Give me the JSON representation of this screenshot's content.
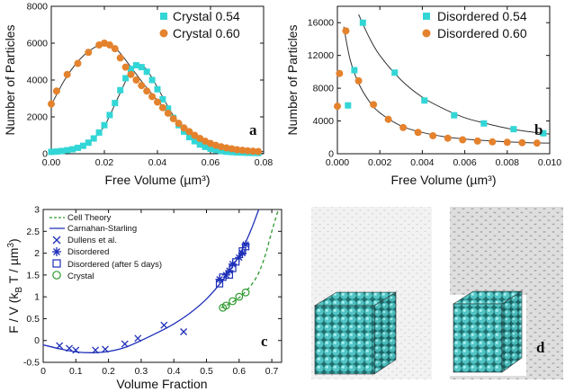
{
  "colors": {
    "cyan": "#33d6d6",
    "orange": "#e4822d",
    "blue": "#1e2fb8",
    "green": "#2e9a2e",
    "teal": "#3fb5b5"
  },
  "panels": {
    "a": "a",
    "b": "b",
    "c": "c",
    "d": "d"
  },
  "chart_data": [
    {
      "id": "a",
      "type": "scatter",
      "xlabel": "Free Volume (µm³)",
      "ylabel": "Number of Particles",
      "xlim": [
        0,
        0.08
      ],
      "ylim": [
        0,
        8000
      ],
      "xticks": [
        0.0,
        0.02,
        0.04,
        0.06,
        0.08
      ],
      "yticks": [
        0,
        2000,
        4000,
        6000,
        8000
      ],
      "xtick_labels": [
        "0.00",
        "0.02",
        "0.04",
        "0.06",
        "0.08"
      ],
      "ytick_labels": [
        "0",
        "2000",
        "4000",
        "6000",
        "8000"
      ],
      "series": [
        {
          "name": "Crystal 0.54",
          "marker": "square",
          "color": "#33d6d6",
          "x": [
            0.0,
            0.002,
            0.004,
            0.006,
            0.008,
            0.01,
            0.012,
            0.014,
            0.016,
            0.018,
            0.02,
            0.022,
            0.024,
            0.026,
            0.028,
            0.03,
            0.032,
            0.034,
            0.036,
            0.038,
            0.04,
            0.042,
            0.044,
            0.046,
            0.048,
            0.05,
            0.052,
            0.054,
            0.056,
            0.058,
            0.06,
            0.062,
            0.064,
            0.066,
            0.068,
            0.07,
            0.072,
            0.074,
            0.076,
            0.078
          ],
          "y": [
            100,
            120,
            150,
            190,
            240,
            320,
            430,
            600,
            830,
            1150,
            1550,
            2100,
            2750,
            3450,
            4100,
            4600,
            4800,
            4700,
            4450,
            4000,
            3500,
            2950,
            2450,
            1950,
            1550,
            1200,
            900,
            680,
            500,
            370,
            270,
            200,
            150,
            110,
            90,
            70,
            60,
            50,
            45,
            40
          ]
        },
        {
          "name": "Crystal 0.60",
          "marker": "circle",
          "color": "#e4822d",
          "x": [
            0.0,
            0.002,
            0.006,
            0.01,
            0.014,
            0.018,
            0.02,
            0.022,
            0.024,
            0.026,
            0.028,
            0.03,
            0.032,
            0.034,
            0.036,
            0.038,
            0.04,
            0.042,
            0.044,
            0.046,
            0.048,
            0.05,
            0.052,
            0.054,
            0.056,
            0.058,
            0.06,
            0.062,
            0.064,
            0.066,
            0.068,
            0.07,
            0.072,
            0.074,
            0.076,
            0.078
          ],
          "y": [
            2700,
            3400,
            4300,
            4900,
            5500,
            5900,
            6000,
            5900,
            5700,
            5200,
            4700,
            4300,
            4000,
            3700,
            3400,
            3100,
            2800,
            2500,
            2200,
            1900,
            1650,
            1400,
            1200,
            1000,
            830,
            680,
            560,
            460,
            380,
            320,
            270,
            220,
            190,
            160,
            140,
            120
          ]
        }
      ],
      "fits": [
        {
          "name": "Crystal 0.54 fit",
          "x": [
            0.0,
            0.005,
            0.01,
            0.015,
            0.02,
            0.025,
            0.03,
            0.033,
            0.036,
            0.04,
            0.045,
            0.05,
            0.055,
            0.06,
            0.065,
            0.07,
            0.075,
            0.08
          ],
          "y": [
            80,
            180,
            330,
            700,
            1500,
            3000,
            4500,
            4850,
            4550,
            3600,
            2300,
            1250,
            620,
            290,
            140,
            70,
            40,
            30
          ]
        },
        {
          "name": "Crystal 0.60 fit",
          "x": [
            0.0,
            0.005,
            0.01,
            0.015,
            0.02,
            0.025,
            0.03,
            0.035,
            0.04,
            0.045,
            0.05,
            0.055,
            0.06,
            0.065,
            0.07,
            0.075,
            0.08
          ],
          "y": [
            2650,
            4000,
            5000,
            5650,
            5950,
            5600,
            4700,
            3750,
            2900,
            2100,
            1450,
            960,
            620,
            400,
            260,
            170,
            120
          ]
        }
      ],
      "legend": {
        "position": "top-right",
        "entries": [
          "Crystal 0.54",
          "Crystal 0.60"
        ]
      }
    },
    {
      "id": "b",
      "type": "scatter",
      "xlabel": "Free Volume (µm³)",
      "ylabel": "Number of Particles",
      "xlim": [
        0,
        0.01
      ],
      "ylim": [
        0,
        18000
      ],
      "xticks": [
        0.0,
        0.002,
        0.004,
        0.006,
        0.008,
        0.01
      ],
      "yticks": [
        0,
        4000,
        8000,
        12000,
        16000
      ],
      "xtick_labels": [
        "0.000",
        "0.002",
        "0.004",
        "0.006",
        "0.008",
        "0.010"
      ],
      "ytick_labels": [
        "0",
        "4000",
        "8000",
        "12000",
        "16000"
      ],
      "series": [
        {
          "name": "Disordered 0.54",
          "marker": "square",
          "color": "#33d6d6",
          "x": [
            0.0005,
            0.0008,
            0.0012,
            0.0027,
            0.0041,
            0.0055,
            0.0069,
            0.0083,
            0.0097
          ],
          "y": [
            5900,
            10200,
            16000,
            9900,
            6500,
            4700,
            3700,
            3000,
            2500
          ]
        },
        {
          "name": "Disordered 0.60",
          "marker": "circle",
          "color": "#e4822d",
          "x": [
            0.0,
            0.0001,
            0.0004,
            0.001,
            0.0017,
            0.0024,
            0.0031,
            0.0038,
            0.0045,
            0.0052,
            0.0059,
            0.0066,
            0.0073,
            0.008,
            0.0087,
            0.0094
          ],
          "y": [
            5800,
            9800,
            15000,
            8900,
            6000,
            4200,
            3200,
            2600,
            2200,
            1900,
            1700,
            1550,
            1450,
            1400,
            1350,
            1300
          ]
        }
      ],
      "fits": [
        {
          "name": "Disordered 0.54 fit",
          "x": [
            0.001,
            0.0015,
            0.002,
            0.003,
            0.004,
            0.005,
            0.006,
            0.007,
            0.008,
            0.009,
            0.01
          ],
          "y": [
            17000,
            14200,
            12000,
            9000,
            6900,
            5500,
            4400,
            3700,
            3100,
            2700,
            2400
          ]
        },
        {
          "name": "Disordered 0.60 fit",
          "x": [
            0.0003,
            0.0006,
            0.001,
            0.0015,
            0.002,
            0.003,
            0.004,
            0.005,
            0.006,
            0.007,
            0.008,
            0.009,
            0.01
          ],
          "y": [
            15500,
            11500,
            8600,
            6400,
            5000,
            3400,
            2600,
            2100,
            1800,
            1600,
            1450,
            1350,
            1300
          ]
        }
      ],
      "legend": {
        "position": "top-right",
        "entries": [
          "Disordered 0.54",
          "Disordered 0.60"
        ]
      }
    },
    {
      "id": "c",
      "type": "scatter",
      "xlabel": "Volume Fraction",
      "ylabel": "F / V (k_B T / µm³)",
      "xlim": [
        0,
        0.73
      ],
      "ylim": [
        -0.5,
        3
      ],
      "xticks": [
        0,
        0.1,
        0.2,
        0.3,
        0.4,
        0.5,
        0.6,
        0.7
      ],
      "yticks": [
        -0.5,
        0,
        0.5,
        1,
        1.5,
        2,
        2.5,
        3
      ],
      "xtick_labels": [
        "0",
        "0.1",
        "0.2",
        "0.3",
        "0.4",
        "0.5",
        "0.6",
        "0.7"
      ],
      "ytick_labels": [
        "-0.5",
        "0",
        "0.5",
        "1",
        "1.5",
        "2",
        "2.5",
        "3"
      ],
      "series": [
        {
          "name": "Dullens et al.",
          "marker": "x",
          "color": "#1e2fb8",
          "x": [
            0.05,
            0.08,
            0.1,
            0.16,
            0.19,
            0.25,
            0.29,
            0.37,
            0.43
          ],
          "y": [
            -0.12,
            -0.18,
            -0.22,
            -0.22,
            -0.2,
            -0.08,
            0.05,
            0.35,
            0.2
          ]
        },
        {
          "name": "Disordered",
          "marker": "asterisk",
          "color": "#1e2fb8",
          "x": [
            0.54,
            0.56,
            0.57,
            0.58,
            0.6,
            0.61,
            0.62
          ],
          "y": [
            1.4,
            1.5,
            1.6,
            1.75,
            1.9,
            2.0,
            2.2
          ]
        },
        {
          "name": "Disordered (after 5 days)",
          "marker": "open-square",
          "color": "#1e2fb8",
          "x": [
            0.54,
            0.55,
            0.57,
            0.58,
            0.59,
            0.61,
            0.62
          ],
          "y": [
            1.3,
            1.45,
            1.5,
            1.65,
            1.8,
            2.05,
            2.15
          ]
        },
        {
          "name": "Crystal",
          "marker": "open-circle",
          "color": "#2e9a2e",
          "x": [
            0.55,
            0.56,
            0.58,
            0.6,
            0.62
          ],
          "y": [
            0.75,
            0.8,
            0.9,
            1.0,
            1.1
          ]
        }
      ],
      "lines": [
        {
          "name": "Cell Theory",
          "style": "dashed",
          "color": "#2e9a2e",
          "x": [
            0.545,
            0.56,
            0.58,
            0.6,
            0.62,
            0.64,
            0.66,
            0.68,
            0.7,
            0.72
          ],
          "y": [
            0.75,
            0.8,
            0.88,
            0.98,
            1.12,
            1.3,
            1.55,
            1.95,
            2.5,
            3.0
          ]
        },
        {
          "name": "Carnahan-Starling",
          "style": "solid",
          "color": "#1e2fb8",
          "x": [
            0.0,
            0.05,
            0.1,
            0.15,
            0.2,
            0.25,
            0.3,
            0.35,
            0.4,
            0.45,
            0.5,
            0.55,
            0.58,
            0.6,
            0.62,
            0.64,
            0.66
          ],
          "y": [
            -0.1,
            -0.19,
            -0.26,
            -0.28,
            -0.25,
            -0.16,
            0.0,
            0.18,
            0.38,
            0.63,
            0.95,
            1.38,
            1.7,
            1.95,
            2.25,
            2.6,
            3.0
          ]
        }
      ],
      "legend": {
        "position": "top-left",
        "entries": [
          "Cell Theory",
          "Carnahan-Starling",
          "Dullens et al.",
          "Disordered",
          "Disordered (after 5 days)",
          "Crystal"
        ]
      }
    }
  ]
}
